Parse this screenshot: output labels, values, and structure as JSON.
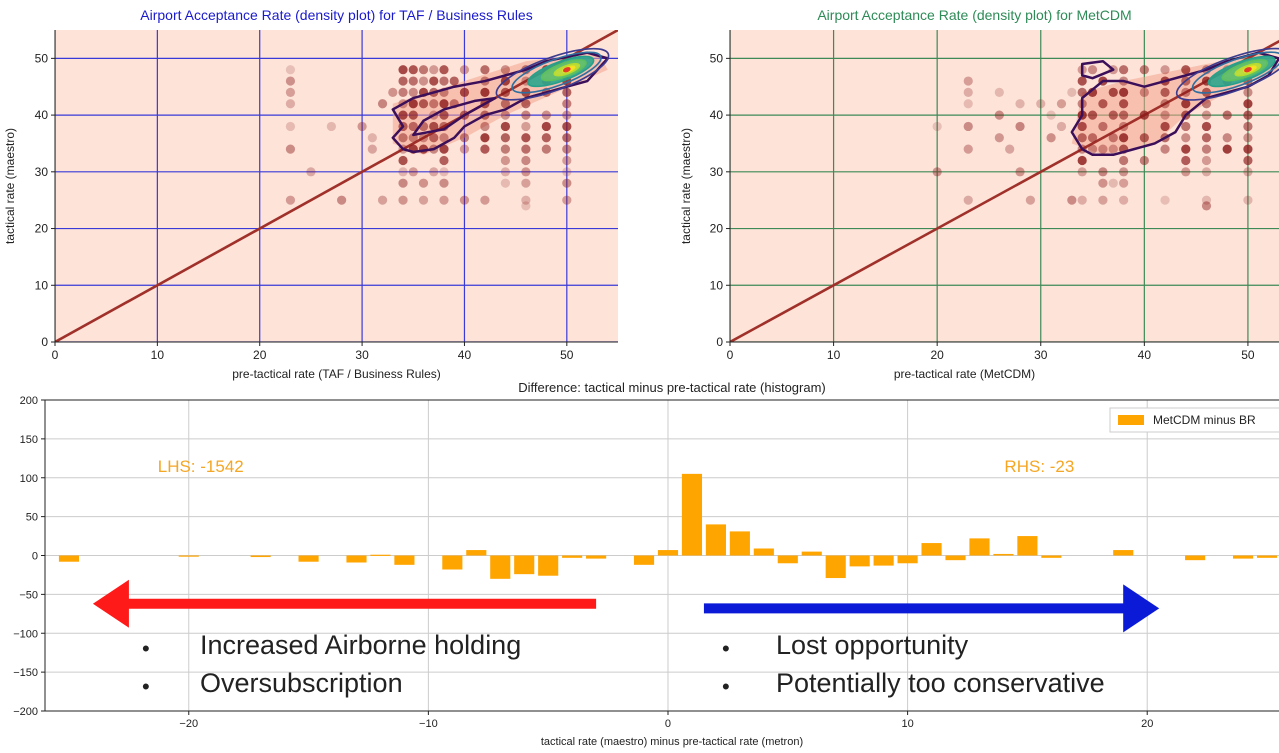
{
  "chart_data": [
    {
      "type": "scatter",
      "subtype": "scatter-with-density-contours",
      "title": "Airport Acceptance Rate (density plot) for TAF / Business Rules",
      "title_color": "#1a1acc",
      "xlabel": "pre-tactical rate (TAF / Business Rules)",
      "ylabel": "tactical rate (maestro)",
      "xlim": [
        0,
        55
      ],
      "ylim": [
        0,
        55
      ],
      "xticks": [
        0,
        10,
        20,
        30,
        40,
        50
      ],
      "yticks": [
        0,
        10,
        20,
        30,
        40,
        50
      ],
      "grid": true,
      "grid_color": "#3a3ad9",
      "background": "#fde3d8",
      "reference_line": {
        "from": [
          0,
          0
        ],
        "to": [
          55,
          55
        ],
        "color": "#a0302a"
      },
      "points": [
        [
          23,
          48
        ],
        [
          23,
          46
        ],
        [
          23,
          44
        ],
        [
          23,
          42
        ],
        [
          23,
          38
        ],
        [
          23,
          34
        ],
        [
          23,
          25
        ],
        [
          25,
          30
        ],
        [
          27,
          38
        ],
        [
          28,
          25
        ],
        [
          30,
          38
        ],
        [
          31,
          34
        ],
        [
          31,
          36
        ],
        [
          32,
          42
        ],
        [
          33,
          44
        ],
        [
          32,
          25
        ],
        [
          34,
          48
        ],
        [
          34,
          46
        ],
        [
          34,
          44
        ],
        [
          34,
          42
        ],
        [
          34,
          40
        ],
        [
          34,
          38
        ],
        [
          34,
          36
        ],
        [
          34,
          34
        ],
        [
          34,
          32
        ],
        [
          34,
          30
        ],
        [
          34,
          28
        ],
        [
          34,
          25
        ],
        [
          35,
          48
        ],
        [
          35,
          46
        ],
        [
          35,
          44
        ],
        [
          35,
          42
        ],
        [
          35,
          40
        ],
        [
          35,
          38
        ],
        [
          35,
          36
        ],
        [
          35,
          34
        ],
        [
          35,
          30
        ],
        [
          36,
          48
        ],
        [
          36,
          46
        ],
        [
          36,
          44
        ],
        [
          36,
          42
        ],
        [
          36,
          38
        ],
        [
          36,
          36
        ],
        [
          36,
          34
        ],
        [
          36,
          28
        ],
        [
          36,
          25
        ],
        [
          37,
          48
        ],
        [
          37,
          46
        ],
        [
          37,
          44
        ],
        [
          37,
          42
        ],
        [
          37,
          40
        ],
        [
          37,
          38
        ],
        [
          37,
          36
        ],
        [
          37,
          34
        ],
        [
          37,
          30
        ],
        [
          38,
          48
        ],
        [
          38,
          46
        ],
        [
          38,
          44
        ],
        [
          38,
          42
        ],
        [
          38,
          40
        ],
        [
          38,
          38
        ],
        [
          38,
          36
        ],
        [
          38,
          34
        ],
        [
          38,
          32
        ],
        [
          38,
          30
        ],
        [
          38,
          28
        ],
        [
          38,
          25
        ],
        [
          39,
          46
        ],
        [
          39,
          42
        ],
        [
          40,
          48
        ],
        [
          40,
          44
        ],
        [
          40,
          40
        ],
        [
          40,
          36
        ],
        [
          40,
          34
        ],
        [
          40,
          25
        ],
        [
          42,
          48
        ],
        [
          42,
          46
        ],
        [
          42,
          44
        ],
        [
          42,
          42
        ],
        [
          42,
          40
        ],
        [
          42,
          38
        ],
        [
          42,
          36
        ],
        [
          42,
          34
        ],
        [
          42,
          25
        ],
        [
          44,
          48
        ],
        [
          44,
          46
        ],
        [
          44,
          44
        ],
        [
          44,
          42
        ],
        [
          44,
          40
        ],
        [
          44,
          38
        ],
        [
          44,
          36
        ],
        [
          44,
          34
        ],
        [
          44,
          32
        ],
        [
          44,
          30
        ],
        [
          44,
          28
        ],
        [
          46,
          48
        ],
        [
          46,
          46
        ],
        [
          46,
          44
        ],
        [
          46,
          42
        ],
        [
          46,
          40
        ],
        [
          46,
          38
        ],
        [
          46,
          36
        ],
        [
          46,
          34
        ],
        [
          46,
          32
        ],
        [
          46,
          30
        ],
        [
          46,
          28
        ],
        [
          46,
          25
        ],
        [
          46,
          24
        ],
        [
          48,
          48
        ],
        [
          48,
          46
        ],
        [
          48,
          44
        ],
        [
          48,
          40
        ],
        [
          48,
          38
        ],
        [
          48,
          36
        ],
        [
          48,
          34
        ],
        [
          50,
          48
        ],
        [
          50,
          46
        ],
        [
          50,
          44
        ],
        [
          50,
          42
        ],
        [
          50,
          40
        ],
        [
          50,
          38
        ],
        [
          50,
          36
        ],
        [
          50,
          34
        ],
        [
          50,
          32
        ],
        [
          50,
          30
        ],
        [
          50,
          28
        ],
        [
          50,
          25
        ]
      ],
      "density_peak": [
        50,
        48
      ]
    },
    {
      "type": "scatter",
      "subtype": "scatter-with-density-contours",
      "title": "Airport Acceptance Rate (density plot) for MetCDM",
      "title_color": "#2e8b57",
      "xlabel": "pre-tactical rate (MetCDM)",
      "ylabel": "tactical rate (maestro)",
      "xlim": [
        0,
        53
      ],
      "ylim": [
        0,
        55
      ],
      "xticks": [
        0,
        10,
        20,
        30,
        40,
        50
      ],
      "yticks": [
        0,
        10,
        20,
        30,
        40,
        50
      ],
      "grid": true,
      "grid_color": "#3e8a57",
      "background": "#fde3d8",
      "reference_line": {
        "from": [
          0,
          0
        ],
        "to": [
          55,
          55
        ],
        "color": "#a0302a"
      },
      "points": [
        [
          20,
          38
        ],
        [
          20,
          30
        ],
        [
          23,
          46
        ],
        [
          23,
          44
        ],
        [
          23,
          42
        ],
        [
          23,
          38
        ],
        [
          23,
          34
        ],
        [
          23,
          25
        ],
        [
          26,
          44
        ],
        [
          26,
          40
        ],
        [
          26,
          36
        ],
        [
          27,
          34
        ],
        [
          28,
          42
        ],
        [
          28,
          38
        ],
        [
          28,
          30
        ],
        [
          29,
          25
        ],
        [
          30,
          42
        ],
        [
          31,
          40
        ],
        [
          31,
          36
        ],
        [
          32,
          42
        ],
        [
          32,
          38
        ],
        [
          33,
          44
        ],
        [
          33,
          25
        ],
        [
          34,
          48
        ],
        [
          34,
          46
        ],
        [
          34,
          44
        ],
        [
          34,
          42
        ],
        [
          34,
          40
        ],
        [
          34,
          38
        ],
        [
          34,
          36
        ],
        [
          34,
          34
        ],
        [
          34,
          32
        ],
        [
          34,
          30
        ],
        [
          34,
          25
        ],
        [
          35,
          48
        ],
        [
          35,
          44
        ],
        [
          35,
          40
        ],
        [
          35,
          36
        ],
        [
          35,
          34
        ],
        [
          36,
          46
        ],
        [
          36,
          42
        ],
        [
          36,
          38
        ],
        [
          36,
          34
        ],
        [
          36,
          30
        ],
        [
          36,
          28
        ],
        [
          36,
          25
        ],
        [
          37,
          48
        ],
        [
          37,
          44
        ],
        [
          37,
          40
        ],
        [
          37,
          36
        ],
        [
          37,
          34
        ],
        [
          37,
          28
        ],
        [
          38,
          48
        ],
        [
          38,
          46
        ],
        [
          38,
          44
        ],
        [
          38,
          42
        ],
        [
          38,
          40
        ],
        [
          38,
          38
        ],
        [
          38,
          36
        ],
        [
          38,
          34
        ],
        [
          38,
          32
        ],
        [
          38,
          30
        ],
        [
          38,
          28
        ],
        [
          38,
          25
        ],
        [
          40,
          48
        ],
        [
          40,
          44
        ],
        [
          40,
          40
        ],
        [
          40,
          36
        ],
        [
          40,
          32
        ],
        [
          42,
          48
        ],
        [
          42,
          46
        ],
        [
          42,
          44
        ],
        [
          42,
          42
        ],
        [
          42,
          40
        ],
        [
          42,
          38
        ],
        [
          42,
          36
        ],
        [
          42,
          34
        ],
        [
          42,
          25
        ],
        [
          44,
          48
        ],
        [
          44,
          46
        ],
        [
          44,
          44
        ],
        [
          44,
          42
        ],
        [
          44,
          40
        ],
        [
          44,
          38
        ],
        [
          44,
          36
        ],
        [
          44,
          34
        ],
        [
          44,
          32
        ],
        [
          44,
          30
        ],
        [
          46,
          48
        ],
        [
          46,
          46
        ],
        [
          46,
          44
        ],
        [
          46,
          42
        ],
        [
          46,
          40
        ],
        [
          46,
          38
        ],
        [
          46,
          36
        ],
        [
          46,
          34
        ],
        [
          46,
          32
        ],
        [
          46,
          30
        ],
        [
          46,
          25
        ],
        [
          46,
          24
        ],
        [
          48,
          48
        ],
        [
          48,
          46
        ],
        [
          48,
          40
        ],
        [
          48,
          36
        ],
        [
          48,
          34
        ],
        [
          50,
          48
        ],
        [
          50,
          46
        ],
        [
          50,
          44
        ],
        [
          50,
          42
        ],
        [
          50,
          40
        ],
        [
          50,
          38
        ],
        [
          50,
          36
        ],
        [
          50,
          34
        ],
        [
          50,
          32
        ],
        [
          50,
          30
        ],
        [
          50,
          25
        ]
      ],
      "density_peak": [
        50,
        48
      ]
    },
    {
      "type": "bar",
      "subtype": "histogram",
      "title": "Difference: tactical minus pre-tactical rate (histogram)",
      "xlabel": "tactical rate (maestro) minus pre-tactical rate (metron)",
      "ylabel": "",
      "xlim": [
        -26,
        25.5
      ],
      "ylim": [
        -200,
        200
      ],
      "xticks": [
        -20,
        -10,
        0,
        10,
        20
      ],
      "xtick_labels": [
        "−20",
        "−10",
        "0",
        "10",
        "20"
      ],
      "yticks": [
        -200,
        -150,
        -100,
        -50,
        0,
        50,
        100,
        150,
        200
      ],
      "ytick_labels": [
        "−200",
        "−150",
        "−100",
        "−50",
        "0",
        "50",
        "100",
        "150",
        "200"
      ],
      "grid": true,
      "bar_color": "#ffa500",
      "legend": {
        "label": "MetCDM minus BR",
        "placement": "top-right"
      },
      "bins": [
        [
          -25,
          -8
        ],
        [
          -24,
          0
        ],
        [
          -23,
          0
        ],
        [
          -22,
          0
        ],
        [
          -21,
          0
        ],
        [
          -20,
          -1
        ],
        [
          -19,
          0
        ],
        [
          -18,
          0
        ],
        [
          -17,
          -2
        ],
        [
          -16,
          0
        ],
        [
          -15,
          -8
        ],
        [
          -14,
          0
        ],
        [
          -13,
          -9
        ],
        [
          -12,
          1
        ],
        [
          -11,
          -12
        ],
        [
          -10,
          0
        ],
        [
          -9,
          -18
        ],
        [
          -8,
          7
        ],
        [
          -7,
          -30
        ],
        [
          -6,
          -24
        ],
        [
          -5,
          -26
        ],
        [
          -4,
          -3
        ],
        [
          -3,
          -4
        ],
        [
          -2,
          0
        ],
        [
          -1,
          -12
        ],
        [
          0,
          7
        ],
        [
          1,
          105
        ],
        [
          2,
          40
        ],
        [
          3,
          31
        ],
        [
          4,
          9
        ],
        [
          5,
          -10
        ],
        [
          6,
          5
        ],
        [
          7,
          -29
        ],
        [
          8,
          -14
        ],
        [
          9,
          -13
        ],
        [
          10,
          -10
        ],
        [
          11,
          16
        ],
        [
          12,
          -6
        ],
        [
          13,
          22
        ],
        [
          14,
          2
        ],
        [
          15,
          25
        ],
        [
          16,
          -3
        ],
        [
          17,
          0
        ],
        [
          18,
          0
        ],
        [
          19,
          7
        ],
        [
          20,
          0
        ],
        [
          21,
          0
        ],
        [
          22,
          -6
        ],
        [
          23,
          0
        ],
        [
          24,
          -4
        ],
        [
          25,
          -3
        ]
      ],
      "annotations": [
        {
          "text": "LHS: -1542",
          "x": -19.5,
          "y": 115,
          "color": "#f5a623"
        },
        {
          "text": "RHS: -23",
          "x": 15.5,
          "y": 115,
          "color": "#f5a623"
        }
      ],
      "arrows": [
        {
          "from": [
            -3,
            -62
          ],
          "to": [
            -24,
            -62
          ],
          "color": "#ff1a1a"
        },
        {
          "from": [
            1.5,
            -68
          ],
          "to": [
            20.5,
            -68
          ],
          "color": "#0a1ad6"
        }
      ]
    }
  ],
  "bullets": {
    "left": [
      "Increased Airborne holding",
      "Oversubscription"
    ],
    "right": [
      "Lost opportunity",
      "Potentially too conservative"
    ],
    "bullet_char": "•"
  }
}
